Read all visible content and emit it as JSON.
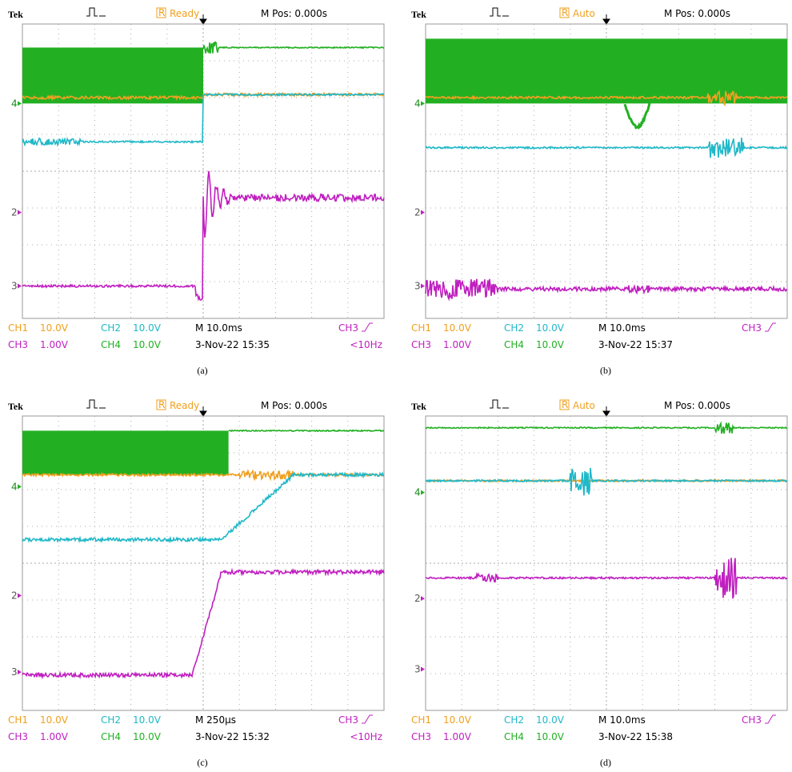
{
  "panels": [
    {
      "brand": "Tek",
      "status_icon": "R",
      "status": "Ready",
      "position": "M Pos: 0.000s",
      "channels": [
        {
          "name": "CH1",
          "scale": "10.0V"
        },
        {
          "name": "CH2",
          "scale": "10.0V"
        },
        {
          "name": "CH3",
          "scale": "1.00V"
        },
        {
          "name": "CH4",
          "scale": "10.0V"
        }
      ],
      "timebase": "M 10.0ms",
      "timestamp": "3-Nov-22 15:35",
      "trigger": "CH3",
      "frequency": "<10Hz",
      "markers": [
        "4",
        "2",
        "3"
      ],
      "caption": "(a)"
    },
    {
      "brand": "Tek",
      "status_icon": "R",
      "status": "Auto",
      "position": "M Pos: 0.000s",
      "channels": [
        {
          "name": "CH1",
          "scale": "10.0V"
        },
        {
          "name": "CH2",
          "scale": "10.0V"
        },
        {
          "name": "CH3",
          "scale": "1.00V"
        },
        {
          "name": "CH4",
          "scale": "10.0V"
        }
      ],
      "timebase": "M 10.0ms",
      "timestamp": "3-Nov-22 15:37",
      "trigger": "CH3",
      "markers": [
        "4",
        "2",
        "3"
      ],
      "caption": "(b)"
    },
    {
      "brand": "Tek",
      "status_icon": "R",
      "status": "Ready",
      "position": "M Pos: 0.000s",
      "channels": [
        {
          "name": "CH1",
          "scale": "10.0V"
        },
        {
          "name": "CH2",
          "scale": "10.0V"
        },
        {
          "name": "CH3",
          "scale": "1.00V"
        },
        {
          "name": "CH4",
          "scale": "10.0V"
        }
      ],
      "timebase": "M 250µs",
      "timestamp": "3-Nov-22 15:32",
      "trigger": "CH3",
      "frequency": "<10Hz",
      "markers": [
        "4",
        "2",
        "3"
      ],
      "caption": "(c)"
    },
    {
      "brand": "Tek",
      "status_icon": "R",
      "status": "Auto",
      "position": "M Pos: 0.000s",
      "channels": [
        {
          "name": "CH1",
          "scale": "10.0V"
        },
        {
          "name": "CH2",
          "scale": "10.0V"
        },
        {
          "name": "CH3",
          "scale": "1.00V"
        },
        {
          "name": "CH4",
          "scale": "10.0V"
        }
      ],
      "timebase": "M 10.0ms",
      "timestamp": "3-Nov-22 15:38",
      "trigger": "CH3",
      "markers": [
        "4",
        "2",
        "3"
      ],
      "caption": "(d)"
    }
  ]
}
